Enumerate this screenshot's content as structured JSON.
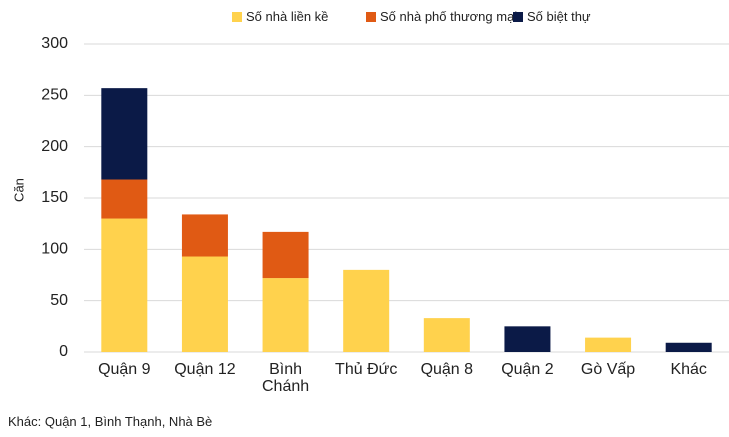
{
  "chart_data": {
    "type": "stacked_bar",
    "y_label": "Căn",
    "categories": [
      "Quận 9",
      "Quận 12",
      "Bình Chánh",
      "Thủ Đức",
      "Quận 8",
      "Quận 2",
      "Gò Vấp",
      "Khác"
    ],
    "series": [
      {
        "name": "Số nhà liền kề",
        "color": "#FFD24D",
        "values": [
          130,
          93,
          72,
          80,
          33,
          0,
          14,
          0
        ]
      },
      {
        "name": "Số nhà phố thương mại",
        "color": "#E05A14",
        "values": [
          38,
          41,
          45,
          0,
          0,
          0,
          0,
          0
        ]
      },
      {
        "name": "Số biệt thự",
        "color": "#0B1A47",
        "values": [
          89,
          0,
          0,
          0,
          0,
          25,
          0,
          9
        ]
      }
    ],
    "ylim": [
      0,
      300
    ],
    "yticks": [
      0,
      50,
      100,
      150,
      200,
      250,
      300
    ],
    "grid": true,
    "legend": "top",
    "footnote": "Khác: Quận 1, Bình Thạnh, Nhà Bè"
  }
}
